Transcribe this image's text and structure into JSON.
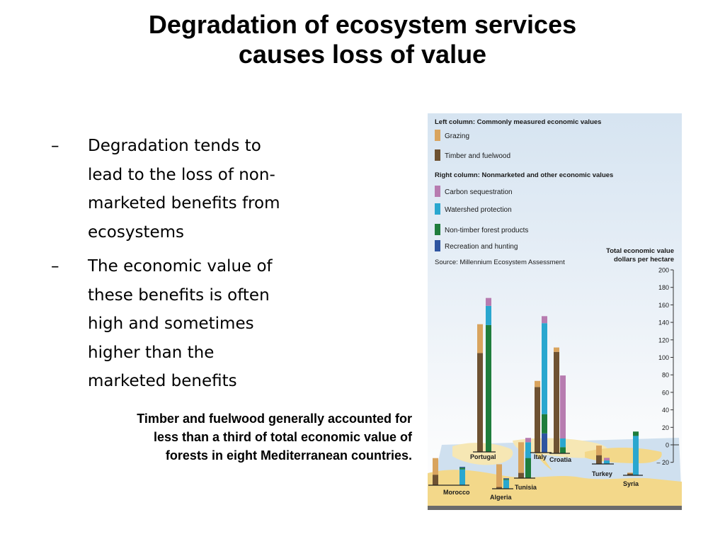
{
  "slide": {
    "title_lines": [
      "Degradation of ecosystem services",
      "causes loss of value"
    ],
    "bullets": [
      {
        "marker": "–",
        "lines": [
          "Degradation tends to",
          "lead to the loss of non-",
          "marketed benefits from",
          "ecosystems"
        ]
      },
      {
        "marker": "–",
        "lines": [
          "The economic value of",
          "these benefits is often",
          "high and sometimes",
          "higher than the",
          "marketed benefits"
        ]
      }
    ],
    "caption_lines": [
      "Timber and fuelwood generally accounted for",
      "less than a third of total economic value of",
      "forests in eight Mediterranean countries."
    ]
  },
  "chart_data": {
    "type": "bar",
    "legend": {
      "left_heading": "Left column: Commonly measured economic values",
      "left_items": [
        {
          "key": "grazing",
          "label": "Grazing",
          "color": "#d9a45e"
        },
        {
          "key": "timber",
          "label": "Timber and fuelwood",
          "color": "#6e5232"
        }
      ],
      "right_heading": "Right column: Nonmarketed and other economic values",
      "right_items": [
        {
          "key": "carbon",
          "label": "Carbon sequestration",
          "color": "#b77cb0"
        },
        {
          "key": "watershed",
          "label": "Watershed protection",
          "color": "#2aa7cf"
        },
        {
          "key": "ntfp",
          "label": "Non-timber forest products",
          "color": "#1f7d3c"
        },
        {
          "key": "recreation",
          "label": "Recreation and hunting",
          "color": "#2f55a0"
        }
      ]
    },
    "source": "Source: Millennium Ecosystem Assessment",
    "ylabel_lines": [
      "Total economic value",
      "dollars per hectare"
    ],
    "ylim": [
      -20,
      200
    ],
    "yticks": [
      200,
      180,
      160,
      140,
      120,
      100,
      80,
      60,
      40,
      20,
      0,
      -20
    ],
    "ytick_labels": [
      "200",
      "180",
      "160",
      "140",
      "120",
      "100",
      "80",
      "60",
      "40",
      "20",
      "0",
      "– 20"
    ],
    "countries": [
      {
        "name": "Morocco",
        "left": [
          {
            "key": "timber",
            "value": 12
          },
          {
            "key": "grazing",
            "value": 19
          }
        ],
        "right": [
          {
            "key": "watershed",
            "value": 18
          },
          {
            "key": "ntfp",
            "value": 2
          },
          {
            "key": "recreation",
            "value": 1
          }
        ]
      },
      {
        "name": "Portugal",
        "left": [
          {
            "key": "timber",
            "value": 113
          },
          {
            "key": "grazing",
            "value": 33
          }
        ],
        "right": [
          {
            "key": "ntfp",
            "value": 145
          },
          {
            "key": "watershed",
            "value": 22
          },
          {
            "key": "carbon",
            "value": 9
          }
        ]
      },
      {
        "name": "Algeria",
        "left": [
          {
            "key": "timber",
            "value": 2
          },
          {
            "key": "grazing",
            "value": 26
          }
        ],
        "right": [
          {
            "key": "watershed",
            "value": 10
          },
          {
            "key": "ntfp",
            "value": 1
          },
          {
            "key": "recreation",
            "value": 1
          }
        ]
      },
      {
        "name": "Tunisia",
        "left": [
          {
            "key": "timber",
            "value": 6
          },
          {
            "key": "grazing",
            "value": 35
          }
        ],
        "right": [
          {
            "key": "ntfp",
            "value": 23
          },
          {
            "key": "watershed",
            "value": 18
          },
          {
            "key": "carbon",
            "value": 5
          }
        ]
      },
      {
        "name": "Italy",
        "left": [
          {
            "key": "timber",
            "value": 75
          },
          {
            "key": "grazing",
            "value": 7
          }
        ],
        "right": [
          {
            "key": "recreation",
            "value": 22
          },
          {
            "key": "ntfp",
            "value": 22
          },
          {
            "key": "watershed",
            "value": 104
          },
          {
            "key": "carbon",
            "value": 8
          }
        ]
      },
      {
        "name": "Croatia",
        "left": [
          {
            "key": "timber",
            "value": 116
          },
          {
            "key": "grazing",
            "value": 5
          }
        ],
        "right": [
          {
            "key": "ntfp",
            "value": 7
          },
          {
            "key": "watershed",
            "value": 10
          },
          {
            "key": "carbon",
            "value": 72
          }
        ]
      },
      {
        "name": "Turkey",
        "left": [
          {
            "key": "timber",
            "value": 10
          },
          {
            "key": "grazing",
            "value": 11
          }
        ],
        "right": [
          {
            "key": "watershed",
            "value": 4
          },
          {
            "key": "carbon",
            "value": 3
          }
        ]
      },
      {
        "name": "Syria",
        "left": [
          {
            "key": "timber",
            "value": 2
          },
          {
            "key": "grazing",
            "value": 1
          }
        ],
        "right": [
          {
            "key": "watershed",
            "value": 45
          },
          {
            "key": "ntfp",
            "value": 5
          }
        ]
      }
    ]
  }
}
